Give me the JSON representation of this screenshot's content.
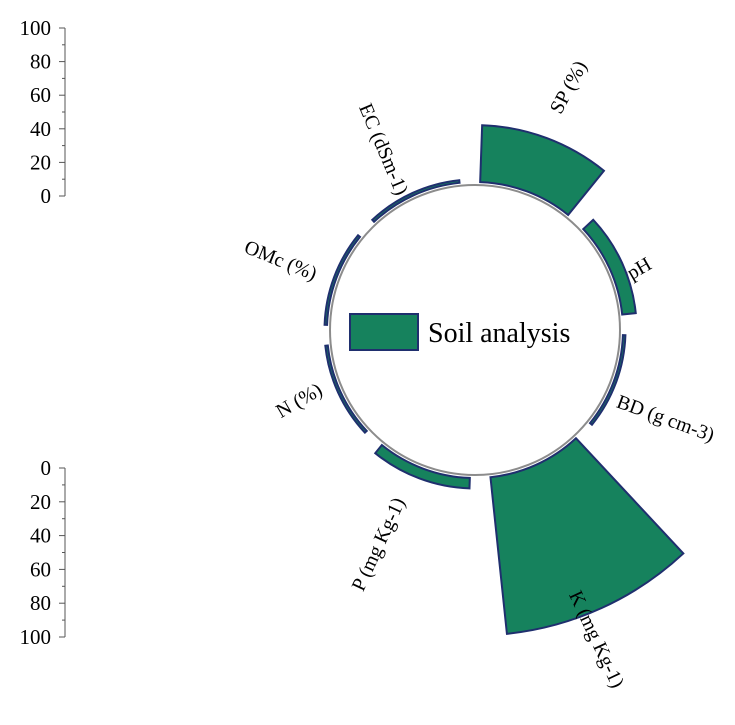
{
  "chart_data": {
    "type": "radial-bar",
    "categories": [
      "SP (%)",
      "pH",
      "BD (g cm-3)",
      "K (mg Kg-1)",
      "P (mg Kg-1)",
      "N (%)",
      "OMc (%)",
      "EC (dSm-1)"
    ],
    "series": [
      {
        "name": "Soil analysis",
        "values": [
          32.5,
          7.8,
          1.4,
          90,
          6,
          0.05,
          0.5,
          1.5
        ]
      }
    ],
    "axis_top": {
      "ticks": [
        "100",
        "80",
        "60",
        "40",
        "20",
        "0"
      ],
      "range": [
        0,
        100
      ]
    },
    "axis_bottom": {
      "ticks": [
        "0",
        "20",
        "40",
        "60",
        "80",
        "100"
      ],
      "range": [
        0,
        100
      ]
    },
    "legend": {
      "label": "Soil analysis",
      "position": "center"
    },
    "colors": {
      "fill": "#16825d",
      "stroke": "#1f2f6e",
      "circle": "#8c8c8c"
    }
  }
}
